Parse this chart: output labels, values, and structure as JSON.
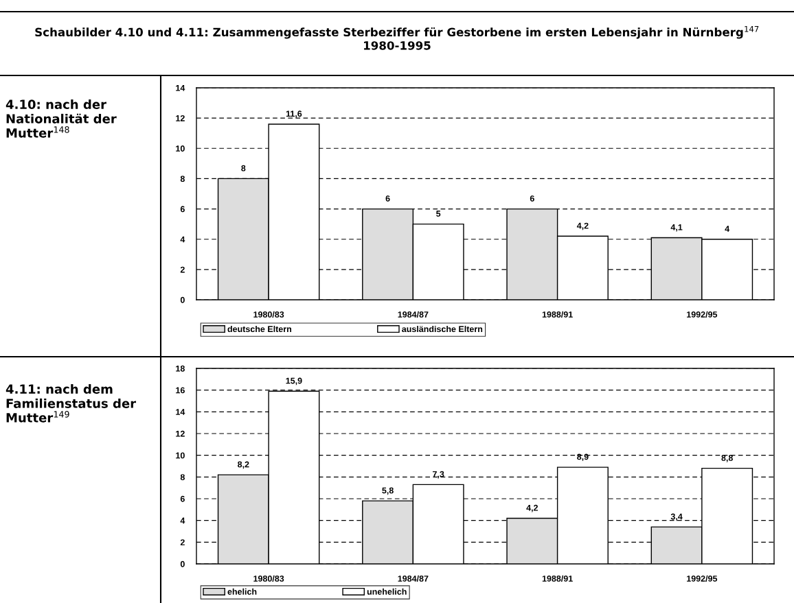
{
  "chart_data": [
    {
      "type": "bar",
      "title": "4.10: nach der Nationalität der Mutter$^{148}$",
      "annotations": [
        "Schaubilder 4.10 und 4.11: Zusammengefasste Sterbeziffer für Gestorbene im ersten Lebensjahr in Nürnberg$^{147}$ 1980-1995"
      ],
      "categories": [
        "1980/83",
        "1984/87",
        "1988/91",
        "1992/95"
      ],
      "series": [
        {
          "name": "deutsche Eltern",
          "color": "#dddddd",
          "values": [
            8,
            6,
            6,
            4.1
          ],
          "value_labels": [
            "8",
            "6",
            "6",
            "4,1"
          ]
        },
        {
          "name": "ausländische Eltern",
          "color": "#ffffff",
          "values": [
            11.6,
            5,
            4.2,
            4
          ],
          "value_labels": [
            "11,6",
            "5",
            "4,2",
            "4"
          ]
        }
      ],
      "ylim": [
        0,
        14
      ],
      "yticks": [
        0,
        2,
        4,
        6,
        8,
        10,
        12,
        14
      ],
      "grid": "y",
      "line_style": "dashed",
      "legend": "bottom"
    },
    {
      "type": "bar",
      "title": "4.11: nach dem Familienstatus der Mutter$^{149}$",
      "categories": [
        "1980/83",
        "1984/87",
        "1988/91",
        "1992/95"
      ],
      "series": [
        {
          "name": "ehelich",
          "color": "#dddddd",
          "values": [
            8.2,
            5.8,
            4.2,
            3.4
          ],
          "value_labels": [
            "8,2",
            "5,8",
            "4,2",
            "3,4"
          ]
        },
        {
          "name": "unehelich",
          "color": "#ffffff",
          "values": [
            15.9,
            7.3,
            8.9,
            8.8
          ],
          "value_labels": [
            "15,9",
            "7,3",
            "8,9",
            "8,8"
          ]
        }
      ],
      "ylim": [
        0,
        18
      ],
      "yticks": [
        0,
        2,
        4,
        6,
        8,
        10,
        12,
        14,
        16,
        18
      ],
      "grid": "y",
      "line_style": "dashed",
      "legend": "bottom"
    }
  ]
}
